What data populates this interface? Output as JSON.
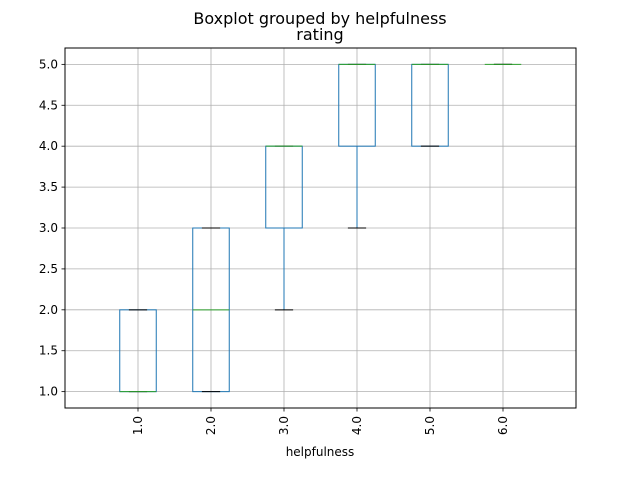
{
  "chart_data": {
    "type": "box",
    "suptitle": "Boxplot grouped by helpfulness",
    "title": "rating",
    "xlabel": "helpfulness",
    "ylabel": "",
    "categories": [
      "1.0",
      "2.0",
      "3.0",
      "4.0",
      "5.0",
      "6.0"
    ],
    "yticks": [
      "1.0",
      "1.5",
      "2.0",
      "2.5",
      "3.0",
      "3.5",
      "4.0",
      "4.5",
      "5.0"
    ],
    "ylim": [
      0.8,
      5.2
    ],
    "grid": true,
    "boxes": [
      {
        "category": "1.0",
        "whisker_low": 1.0,
        "q1": 1.0,
        "median": 1.0,
        "q3": 2.0,
        "whisker_high": 2.0
      },
      {
        "category": "2.0",
        "whisker_low": 1.0,
        "q1": 1.0,
        "median": 2.0,
        "q3": 3.0,
        "whisker_high": 3.0
      },
      {
        "category": "3.0",
        "whisker_low": 2.0,
        "q1": 3.0,
        "median": 4.0,
        "q3": 4.0,
        "whisker_high": 4.0
      },
      {
        "category": "4.0",
        "whisker_low": 3.0,
        "q1": 4.0,
        "median": 5.0,
        "q3": 5.0,
        "whisker_high": 5.0
      },
      {
        "category": "5.0",
        "whisker_low": 4.0,
        "q1": 4.0,
        "median": 5.0,
        "q3": 5.0,
        "whisker_high": 5.0
      },
      {
        "category": "6.0",
        "whisker_low": 5.0,
        "q1": 5.0,
        "median": 5.0,
        "q3": 5.0,
        "whisker_high": 5.0
      }
    ],
    "colors": {
      "box": "#1f77b4",
      "median": "#2ca02c",
      "whisker": "#1f77b4",
      "cap": "#000000",
      "grid": "#b0b0b0",
      "axis": "#000000"
    }
  }
}
